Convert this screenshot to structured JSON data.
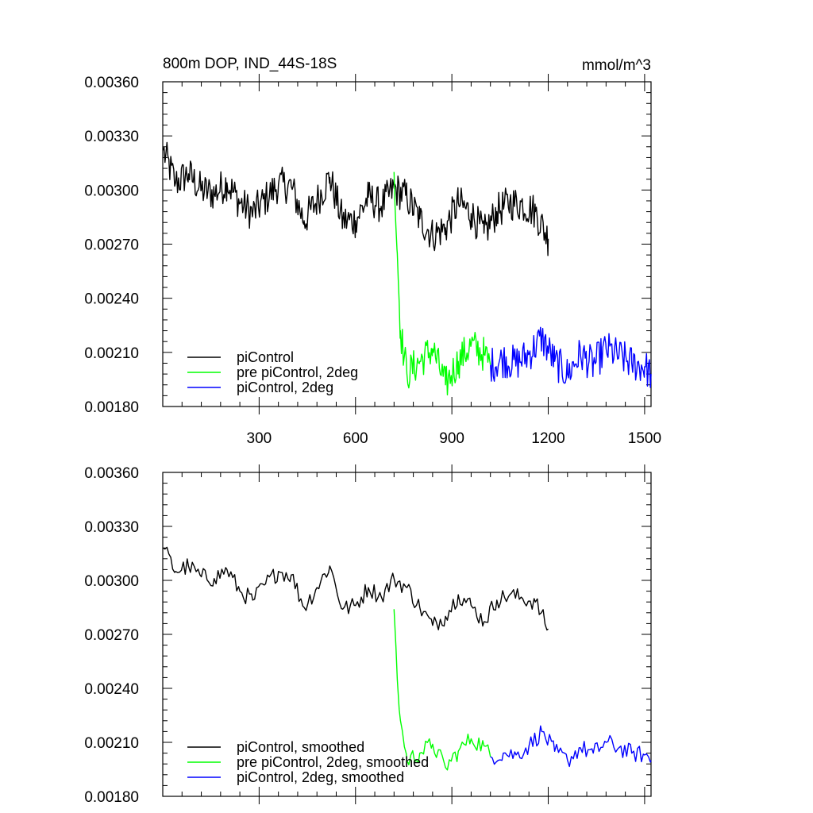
{
  "chart_data": [
    {
      "type": "line",
      "title": "800m DOP, IND_44S-18S",
      "units": "mmol/m^3",
      "xlim": [
        0,
        1520
      ],
      "ylim": [
        0.0018,
        0.0036
      ],
      "yticks": [
        "0.00180",
        "0.00210",
        "0.00240",
        "0.00270",
        "0.00300",
        "0.00330",
        "0.00360"
      ],
      "xticks": [
        "300",
        "600",
        "900",
        "1200",
        "1500"
      ],
      "grid": false,
      "legend_position": "bottom-left",
      "series": [
        {
          "name": "piControl",
          "color": "#000000",
          "x": [
            1,
            40,
            80,
            120,
            160,
            200,
            240,
            280,
            320,
            360,
            400,
            440,
            480,
            520,
            560,
            600,
            640,
            680,
            720,
            760,
            800,
            840,
            880,
            920,
            960,
            1000,
            1040,
            1080,
            1120,
            1160,
            1200
          ],
          "values": [
            0.00322,
            0.00304,
            0.00309,
            0.003,
            0.00298,
            0.00304,
            0.00293,
            0.00287,
            0.00295,
            0.00303,
            0.00302,
            0.00283,
            0.00294,
            0.00307,
            0.00283,
            0.00283,
            0.00296,
            0.00291,
            0.00301,
            0.00296,
            0.00284,
            0.00275,
            0.00279,
            0.00293,
            0.00287,
            0.00276,
            0.00288,
            0.00293,
            0.00292,
            0.00288,
            0.00273
          ]
        },
        {
          "name": "pre piControl, 2deg",
          "color": "#00ff00",
          "x": [
            720,
            730,
            740,
            760,
            800,
            840,
            880,
            920,
            960,
            1000,
            1020
          ],
          "values": [
            0.0031,
            0.00265,
            0.00222,
            0.00198,
            0.00205,
            0.00212,
            0.00192,
            0.00205,
            0.00214,
            0.00209,
            0.00203
          ]
        },
        {
          "name": "piControl, 2deg",
          "color": "#0000ff",
          "x": [
            1020,
            1060,
            1100,
            1140,
            1180,
            1220,
            1260,
            1300,
            1340,
            1380,
            1420,
            1460,
            1500,
            1520
          ],
          "values": [
            0.00203,
            0.00206,
            0.00204,
            0.00209,
            0.00218,
            0.00205,
            0.00198,
            0.00209,
            0.00203,
            0.00212,
            0.00208,
            0.00204,
            0.00202,
            0.00198
          ]
        }
      ]
    },
    {
      "type": "line",
      "xlim": [
        0,
        1520
      ],
      "ylim": [
        0.0018,
        0.0036
      ],
      "yticks": [
        "0.00180",
        "0.00210",
        "0.00240",
        "0.00270",
        "0.00300",
        "0.00330",
        "0.00360"
      ],
      "grid": false,
      "legend_position": "bottom-left",
      "series": [
        {
          "name": "piControl, smoothed",
          "color": "#000000",
          "x": [
            1,
            40,
            80,
            120,
            160,
            200,
            240,
            280,
            320,
            360,
            400,
            440,
            480,
            520,
            560,
            600,
            640,
            680,
            720,
            760,
            800,
            840,
            880,
            920,
            960,
            1000,
            1040,
            1080,
            1120,
            1160,
            1200
          ],
          "values": [
            0.00318,
            0.00305,
            0.00308,
            0.00302,
            0.00301,
            0.00306,
            0.00294,
            0.00289,
            0.00298,
            0.00305,
            0.00303,
            0.00285,
            0.00296,
            0.00308,
            0.00284,
            0.00286,
            0.00296,
            0.00291,
            0.00301,
            0.00296,
            0.00285,
            0.00275,
            0.0028,
            0.00292,
            0.00286,
            0.00277,
            0.00289,
            0.00292,
            0.0029,
            0.00288,
            0.00273
          ]
        },
        {
          "name": "pre piControl, 2deg, smoothed",
          "color": "#00ff00",
          "x": [
            720,
            730,
            740,
            760,
            800,
            840,
            880,
            920,
            960,
            1000,
            1020
          ],
          "values": [
            0.00284,
            0.00245,
            0.00222,
            0.002,
            0.00204,
            0.00209,
            0.00196,
            0.00205,
            0.00212,
            0.00208,
            0.00202
          ]
        },
        {
          "name": "piControl, 2deg, smoothed",
          "color": "#0000ff",
          "x": [
            1020,
            1060,
            1100,
            1140,
            1180,
            1220,
            1260,
            1300,
            1340,
            1380,
            1420,
            1460,
            1500,
            1520
          ],
          "values": [
            0.00202,
            0.00204,
            0.00203,
            0.00208,
            0.00216,
            0.00205,
            0.002,
            0.00207,
            0.00204,
            0.0021,
            0.00207,
            0.00204,
            0.00203,
            0.002
          ]
        }
      ]
    }
  ]
}
